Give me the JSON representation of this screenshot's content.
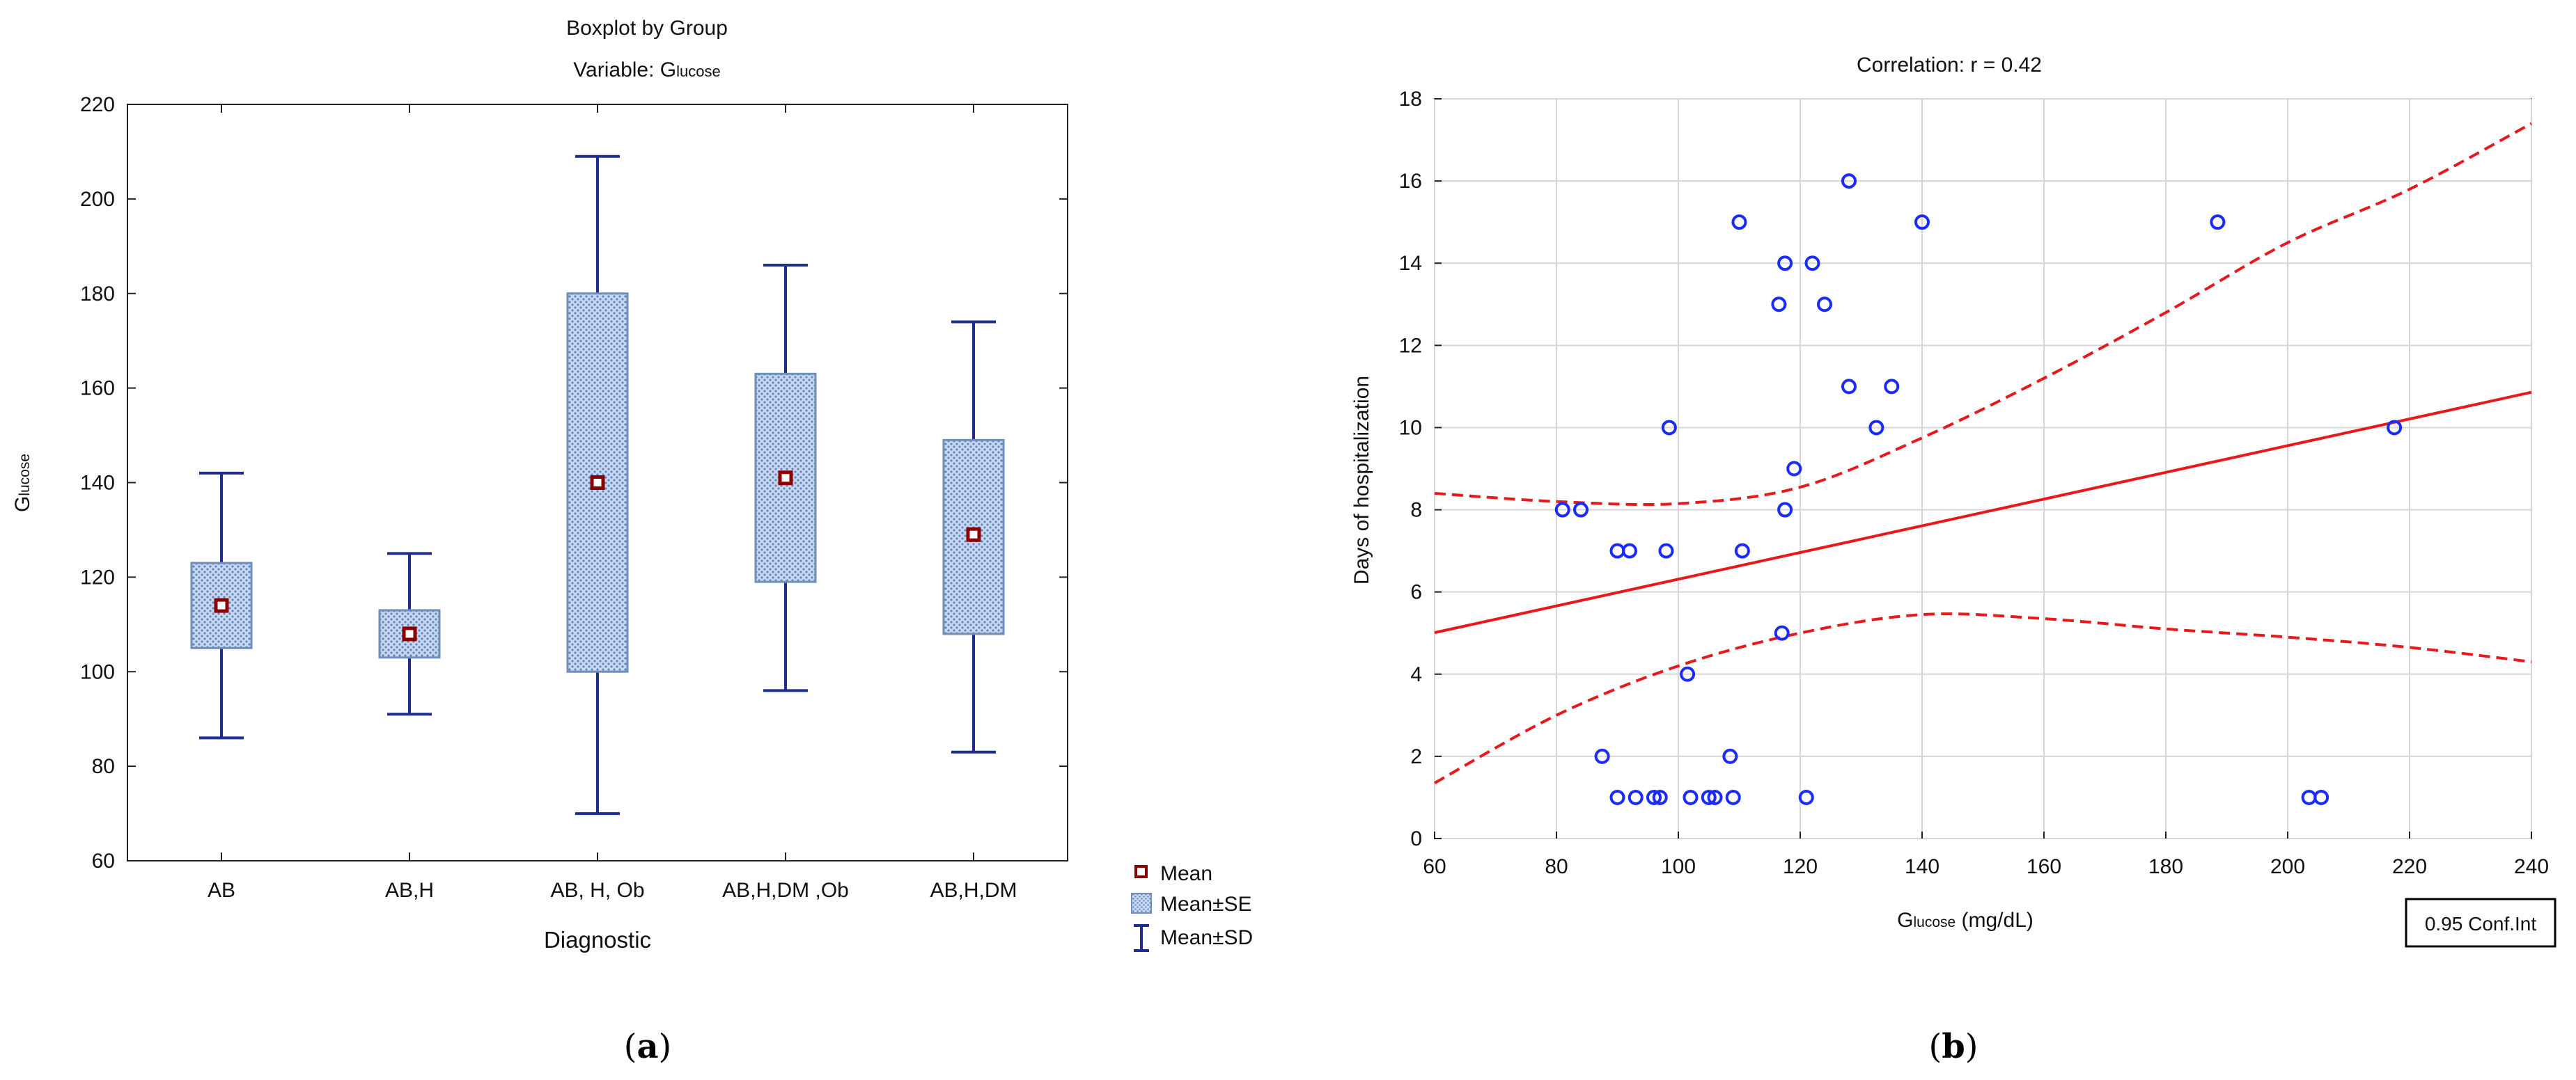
{
  "chart_data": [
    {
      "type": "boxplot",
      "title": "Boxplot by Group",
      "subtitle": "Variable: Glucose",
      "subtitle_prefix": "Variable: G",
      "subtitle_smallcaps": "lucose",
      "xlabel": "Diagnostic",
      "ylabel": "Glucose",
      "ylabel_cap": "G",
      "ylabel_smallcaps": "lucose",
      "ylim": [
        60,
        220
      ],
      "yticks": [
        "60",
        "80",
        "100",
        "120",
        "140",
        "160",
        "180",
        "200",
        "220"
      ],
      "categories": [
        "AB",
        "AB,H",
        "AB, H, Ob",
        "AB,H,DM ,Ob",
        "AB,H,DM"
      ],
      "groups": [
        {
          "label": "AB",
          "mean": 114,
          "se_low": 105,
          "se_high": 123,
          "sd_low": 86,
          "sd_high": 142
        },
        {
          "label": "AB,H",
          "mean": 108,
          "se_low": 103,
          "se_high": 113,
          "sd_low": 91,
          "sd_high": 125
        },
        {
          "label": "AB, H, Ob",
          "mean": 140,
          "se_low": 100,
          "se_high": 180,
          "sd_low": 70,
          "sd_high": 209
        },
        {
          "label": "AB,H,DM ,Ob",
          "mean": 141,
          "se_low": 119,
          "se_high": 163,
          "sd_low": 96,
          "sd_high": 186
        },
        {
          "label": "AB,H,DM",
          "mean": 129,
          "se_low": 108,
          "se_high": 149,
          "sd_low": 83,
          "sd_high": 174
        }
      ],
      "legend": [
        "Mean",
        "Mean±SE",
        "Mean±SD"
      ],
      "colors": {
        "box_fill": "#b9cde8",
        "box_edge": "#6f8fb8",
        "whisker": "#1f2e8a",
        "mean": "#8b0000"
      },
      "caption": "(a)",
      "caption_letter": "a"
    },
    {
      "type": "scatter",
      "title": "Correlation: r = 0.42",
      "xlabel": "Glucose (mg/dL)",
      "xlabel_cap": "G",
      "xlabel_smallcaps": "lucose",
      "xlabel_rest": " (mg/dL)",
      "ylabel": "Days of hospitalization",
      "xlim": [
        60,
        240
      ],
      "ylim": [
        0,
        18
      ],
      "xticks": [
        "60",
        "80",
        "100",
        "120",
        "140",
        "160",
        "180",
        "200",
        "220",
        "240"
      ],
      "yticks": [
        "0",
        "2",
        "4",
        "6",
        "8",
        "10",
        "12",
        "14",
        "16",
        "18"
      ],
      "points": [
        [
          81,
          8
        ],
        [
          84,
          8
        ],
        [
          90,
          7
        ],
        [
          92,
          7
        ],
        [
          98,
          7
        ],
        [
          98.5,
          10
        ],
        [
          87.5,
          2
        ],
        [
          90,
          1
        ],
        [
          93,
          1
        ],
        [
          96,
          1
        ],
        [
          97,
          1
        ],
        [
          101.5,
          4
        ],
        [
          102,
          1
        ],
        [
          105,
          1
        ],
        [
          106,
          1
        ],
        [
          108.5,
          2
        ],
        [
          109,
          1
        ],
        [
          110,
          15
        ],
        [
          110.5,
          7
        ],
        [
          116.5,
          13
        ],
        [
          117,
          5
        ],
        [
          117.5,
          14
        ],
        [
          117.5,
          8
        ],
        [
          119,
          9
        ],
        [
          121,
          1
        ],
        [
          122,
          14
        ],
        [
          124,
          13
        ],
        [
          128,
          16
        ],
        [
          128,
          11
        ],
        [
          132.5,
          10
        ],
        [
          135,
          11
        ],
        [
          140,
          15
        ],
        [
          188.5,
          15
        ],
        [
          203.5,
          1
        ],
        [
          205.5,
          1
        ],
        [
          217.5,
          10
        ]
      ],
      "regression": {
        "intercept": 3.06,
        "slope": 0.0325
      },
      "ci_upper": [
        [
          60,
          8.4
        ],
        [
          80,
          8.2
        ],
        [
          100,
          8.15
        ],
        [
          120,
          8.55
        ],
        [
          140,
          9.75
        ],
        [
          160,
          11.2
        ],
        [
          180,
          12.8
        ],
        [
          200,
          14.5
        ],
        [
          220,
          15.8
        ],
        [
          240,
          17.4
        ]
      ],
      "ci_lower": [
        [
          60,
          1.35
        ],
        [
          80,
          3.0
        ],
        [
          100,
          4.2
        ],
        [
          120,
          5.0
        ],
        [
          140,
          5.45
        ],
        [
          160,
          5.35
        ],
        [
          180,
          5.1
        ],
        [
          200,
          4.9
        ],
        [
          220,
          4.65
        ],
        [
          240,
          4.3
        ]
      ],
      "legend": [
        "0.95 Conf.Int"
      ],
      "colors": {
        "points": "#1a2bff",
        "line": "#e8191c"
      },
      "caption": "(b)",
      "caption_letter": "b"
    }
  ]
}
